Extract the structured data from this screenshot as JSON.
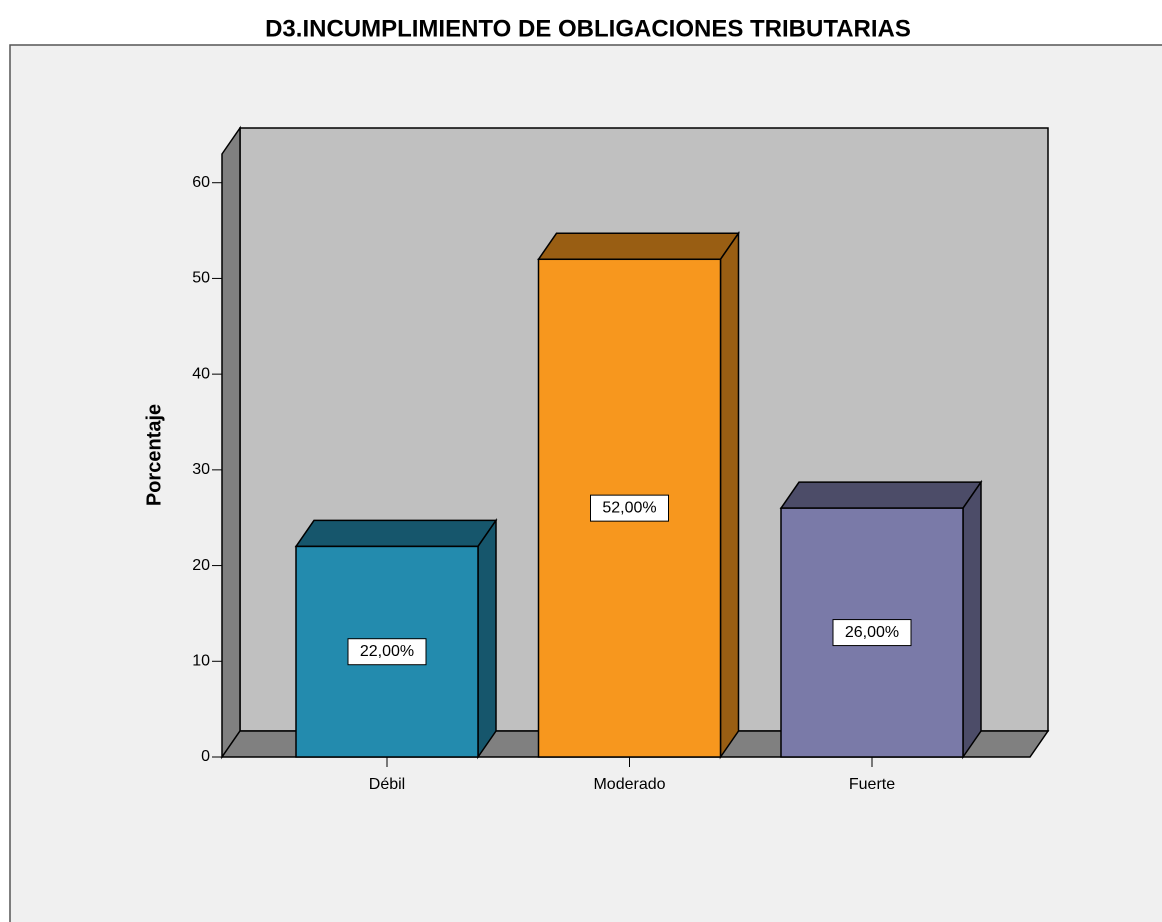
{
  "chart_data": {
    "type": "bar3d",
    "title": "D3.INCUMPLIMIENTO DE OBLIGACIONES TRIBUTARIAS",
    "y_label": "Porcentaje",
    "categories": [
      "Débil",
      "Moderado",
      "Fuerte"
    ],
    "values": [
      22,
      52,
      26
    ],
    "value_labels": [
      "22,00%",
      "52,00%",
      "26,00%"
    ],
    "colors": [
      "#238bae",
      "#f7971e",
      "#7a7aa8"
    ],
    "ylim": [
      0,
      63
    ],
    "yticks": [
      0,
      10,
      20,
      30,
      40,
      50,
      60
    ]
  }
}
